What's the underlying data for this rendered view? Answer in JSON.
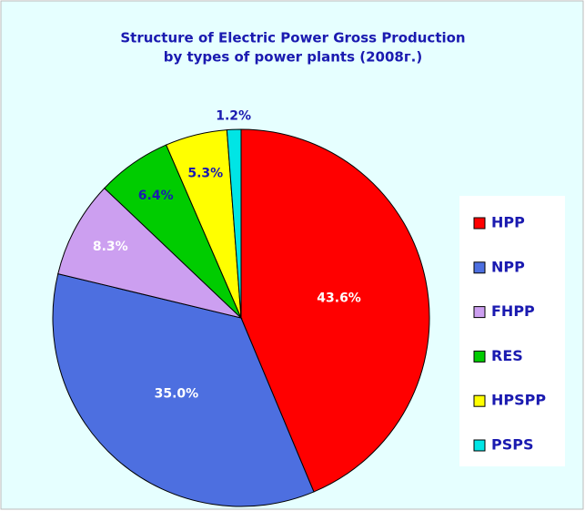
{
  "chart_data": {
    "type": "pie",
    "title": "Structure of Electric Power Gross Production",
    "subtitle": "by types of power plants (2008г.)",
    "categories": [
      "HPP",
      "NPP",
      "FHPP",
      "RES",
      "HPSPP",
      "PSPS"
    ],
    "values": [
      43.6,
      35.0,
      8.3,
      6.4,
      5.3,
      1.2
    ],
    "value_labels": [
      "43.6%",
      "35.0%",
      "8.3%",
      "6.4%",
      "5.3%",
      "1.2%"
    ],
    "colors": [
      "#ff0000",
      "#4d6fe0",
      "#cc9ff0",
      "#00cc00",
      "#ffff00",
      "#00e5e5"
    ],
    "legend": "right"
  }
}
